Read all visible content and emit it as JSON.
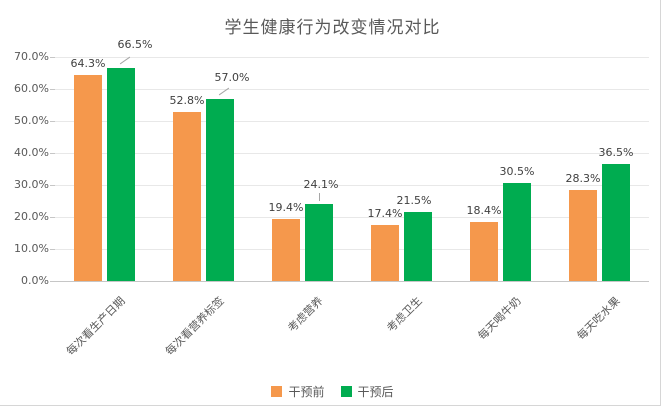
{
  "title": "学生健康行为改变情况对比",
  "colors": {
    "before": "#F5984C",
    "after": "#00AC50",
    "title_text": "#595959",
    "axis_text": "#595959",
    "value_label_text": "#404040",
    "gridline": "#E8E8E8",
    "frame_border": "#D6D6D6"
  },
  "chart_data": {
    "type": "bar",
    "title": "学生健康行为改变情况对比",
    "categories": [
      "每次看生产日期",
      "每次看营养标签",
      "考虑营养",
      "考虑卫生",
      "每天喝牛奶",
      "每天吃水果"
    ],
    "series": [
      {
        "name": "干预前",
        "color": "#F5984C",
        "values": [
          64.3,
          52.8,
          19.4,
          17.4,
          18.4,
          28.3
        ]
      },
      {
        "name": "干预后",
        "color": "#00AC50",
        "values": [
          66.5,
          57.0,
          24.1,
          21.5,
          30.5,
          36.5
        ]
      }
    ],
    "ylim": [
      0,
      70
    ],
    "ytick_step": 10,
    "ytick_suffix": "%",
    "ytick_decimals": 1,
    "value_label_decimals": 1,
    "value_label_suffix": "%",
    "grid": true,
    "legend_position": "bottom",
    "xlabel": "",
    "ylabel": ""
  }
}
